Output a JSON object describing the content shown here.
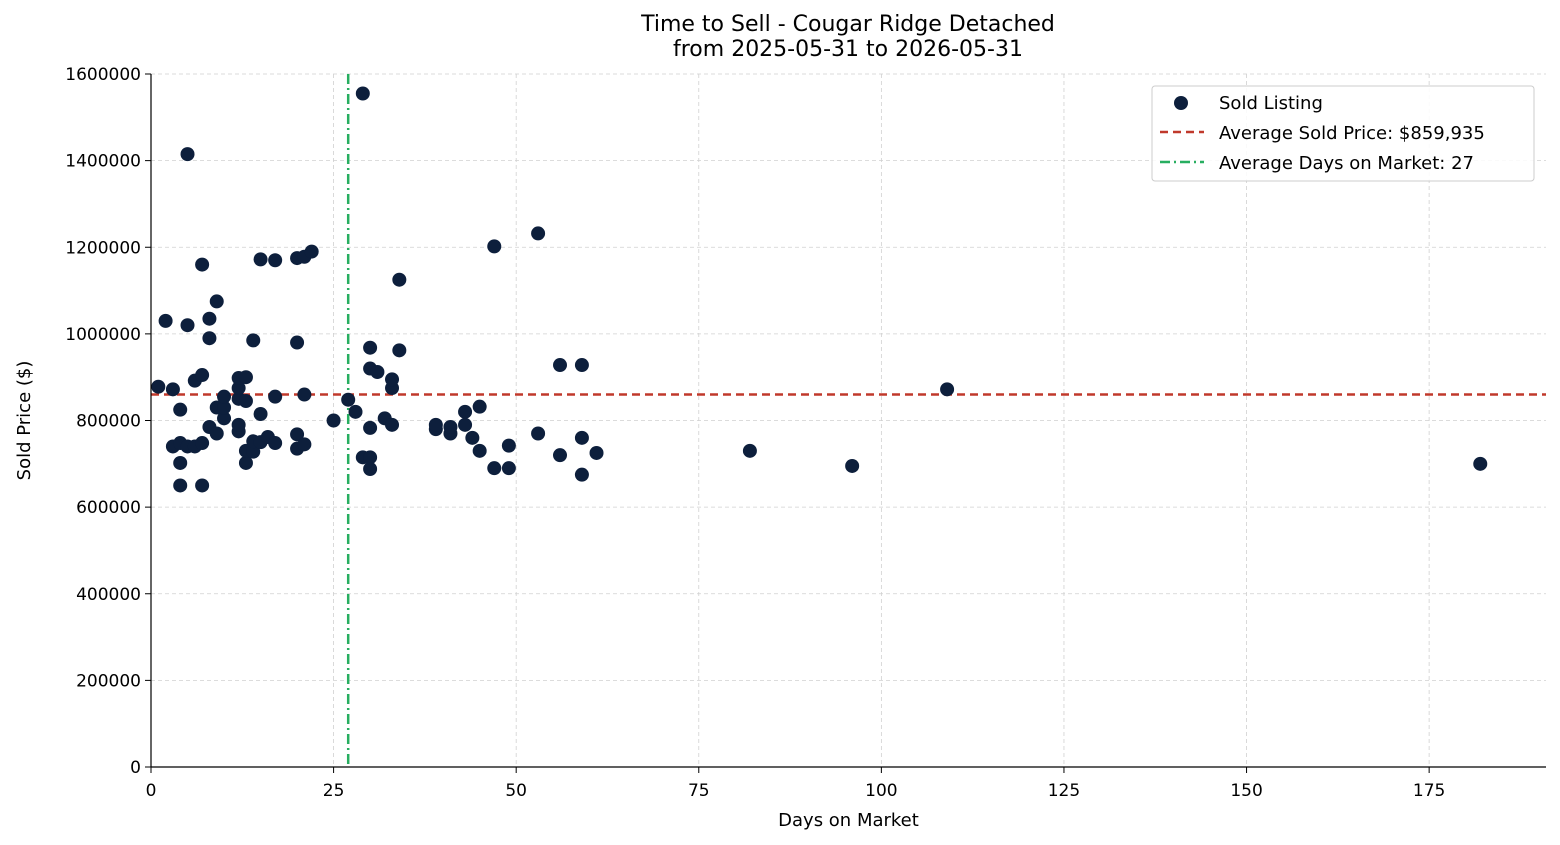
{
  "chart_data": {
    "type": "scatter",
    "title": "Time to Sell - Cougar Ridge Detached",
    "subtitle": "from 2025-05-31 to 2026-05-31",
    "xlabel": "Days on Market",
    "ylabel": "Sold Price ($)",
    "xlim": [
      0,
      191
    ],
    "ylim": [
      0,
      1600000
    ],
    "xticks": [
      0,
      25,
      50,
      75,
      100,
      125,
      150,
      175
    ],
    "yticks": [
      0,
      200000,
      400000,
      600000,
      800000,
      1000000,
      1200000,
      1400000,
      1600000
    ],
    "grid": true,
    "legend_position": "top-right",
    "series": [
      {
        "name": "Sold Listing",
        "color": "#0d1f3c",
        "points": [
          [
            1,
            878000
          ],
          [
            2,
            1030000
          ],
          [
            3,
            740000
          ],
          [
            3,
            872000
          ],
          [
            4,
            650000
          ],
          [
            4,
            702000
          ],
          [
            4,
            748000
          ],
          [
            4,
            825000
          ],
          [
            5,
            740000
          ],
          [
            5,
            1020000
          ],
          [
            5,
            1415000
          ],
          [
            6,
            740000
          ],
          [
            6,
            892000
          ],
          [
            7,
            650000
          ],
          [
            7,
            748000
          ],
          [
            7,
            905000
          ],
          [
            7,
            1160000
          ],
          [
            8,
            785000
          ],
          [
            8,
            990000
          ],
          [
            8,
            1035000
          ],
          [
            9,
            770000
          ],
          [
            9,
            830000
          ],
          [
            9,
            1075000
          ],
          [
            10,
            805000
          ],
          [
            10,
            830000
          ],
          [
            10,
            855000
          ],
          [
            12,
            775000
          ],
          [
            12,
            790000
          ],
          [
            12,
            850000
          ],
          [
            12,
            875000
          ],
          [
            12,
            898000
          ],
          [
            13,
            702000
          ],
          [
            13,
            730000
          ],
          [
            13,
            845000
          ],
          [
            13,
            900000
          ],
          [
            14,
            728000
          ],
          [
            14,
            752000
          ],
          [
            14,
            985000
          ],
          [
            15,
            750000
          ],
          [
            15,
            815000
          ],
          [
            15,
            1172000
          ],
          [
            16,
            762000
          ],
          [
            17,
            748000
          ],
          [
            17,
            855000
          ],
          [
            17,
            1170000
          ],
          [
            20,
            735000
          ],
          [
            20,
            768000
          ],
          [
            20,
            980000
          ],
          [
            20,
            1175000
          ],
          [
            21,
            745000
          ],
          [
            21,
            860000
          ],
          [
            21,
            1178000
          ],
          [
            22,
            1190000
          ],
          [
            25,
            800000
          ],
          [
            27,
            848000
          ],
          [
            28,
            820000
          ],
          [
            29,
            715000
          ],
          [
            29,
            1555000
          ],
          [
            30,
            688000
          ],
          [
            30,
            715000
          ],
          [
            30,
            783000
          ],
          [
            30,
            920000
          ],
          [
            30,
            968000
          ],
          [
            31,
            912000
          ],
          [
            32,
            805000
          ],
          [
            33,
            790000
          ],
          [
            33,
            875000
          ],
          [
            33,
            895000
          ],
          [
            34,
            962000
          ],
          [
            34,
            1125000
          ],
          [
            39,
            780000
          ],
          [
            39,
            790000
          ],
          [
            41,
            770000
          ],
          [
            41,
            785000
          ],
          [
            43,
            790000
          ],
          [
            43,
            820000
          ],
          [
            44,
            760000
          ],
          [
            45,
            730000
          ],
          [
            45,
            832000
          ],
          [
            47,
            690000
          ],
          [
            47,
            1202000
          ],
          [
            49,
            690000
          ],
          [
            49,
            742000
          ],
          [
            53,
            770000
          ],
          [
            53,
            1232000
          ],
          [
            56,
            720000
          ],
          [
            56,
            928000
          ],
          [
            59,
            675000
          ],
          [
            59,
            760000
          ],
          [
            59,
            928000
          ],
          [
            61,
            725000
          ],
          [
            82,
            730000
          ],
          [
            96,
            695000
          ],
          [
            109,
            872000
          ],
          [
            182,
            700000
          ]
        ]
      }
    ],
    "reference_lines": [
      {
        "name": "Average Sold Price: $859,935",
        "orientation": "horizontal",
        "value": 859935,
        "color": "#c0392b",
        "style": "dashed"
      },
      {
        "name": "Average Days on Market: 27",
        "orientation": "vertical",
        "value": 27,
        "color": "#27ae60",
        "style": "dashdot"
      }
    ]
  }
}
